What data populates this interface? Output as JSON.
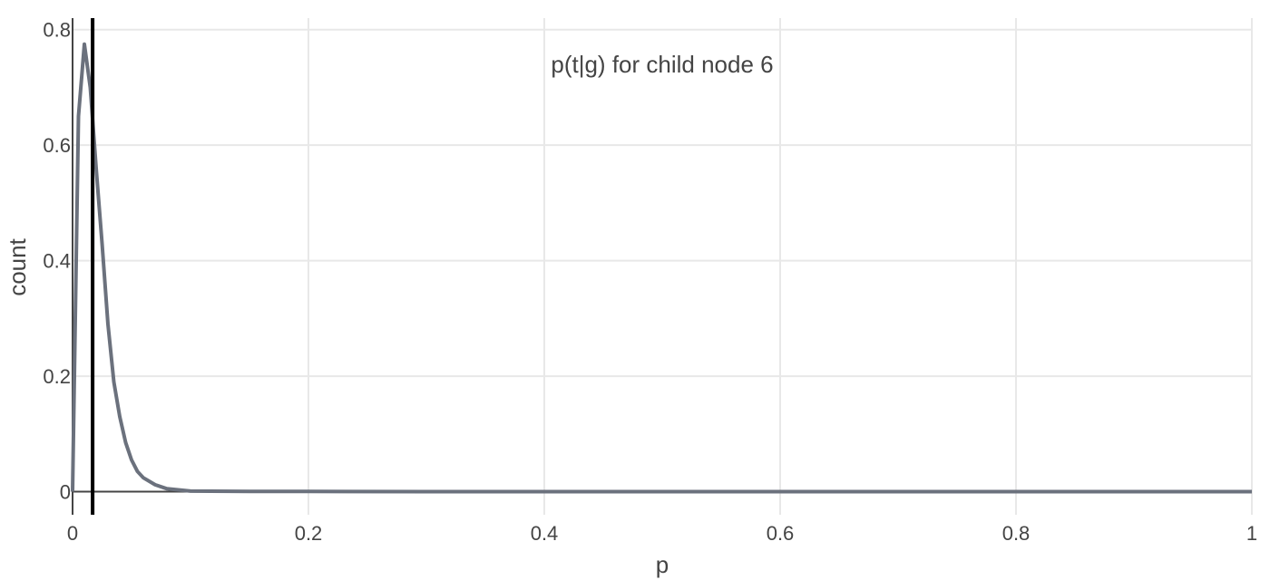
{
  "chart_data": {
    "type": "line",
    "title": "p(t|g) for child node 6",
    "xlabel": "p",
    "ylabel": "count",
    "xlim": [
      0,
      1
    ],
    "ylim": [
      -0.04,
      0.82
    ],
    "x_ticks": [
      0,
      0.2,
      0.4,
      0.6,
      0.8,
      1
    ],
    "x_tick_labels": [
      "0",
      "0.2",
      "0.4",
      "0.6",
      "0.8",
      "1"
    ],
    "y_ticks": [
      0,
      0.2,
      0.4,
      0.6,
      0.8
    ],
    "y_tick_labels": [
      "0",
      "0.2",
      "0.4",
      "0.6",
      "0.8"
    ],
    "grid": true,
    "vline": {
      "x": 0.017,
      "color": "#000000"
    },
    "series": [
      {
        "color": "#6b717d",
        "x": [
          0,
          0.005,
          0.01,
          0.015,
          0.02,
          0.025,
          0.03,
          0.035,
          0.04,
          0.045,
          0.05,
          0.055,
          0.06,
          0.07,
          0.08,
          0.1,
          0.15,
          0.2,
          0.3,
          0.4,
          0.5,
          0.6,
          0.7,
          0.8,
          0.9,
          1.0
        ],
        "y": [
          0,
          0.65,
          0.775,
          0.7,
          0.56,
          0.43,
          0.29,
          0.19,
          0.13,
          0.085,
          0.055,
          0.035,
          0.024,
          0.012,
          0.005,
          0.001,
          0.0005,
          0.0003,
          0,
          0,
          0,
          0,
          0,
          0,
          0,
          0
        ]
      }
    ]
  }
}
